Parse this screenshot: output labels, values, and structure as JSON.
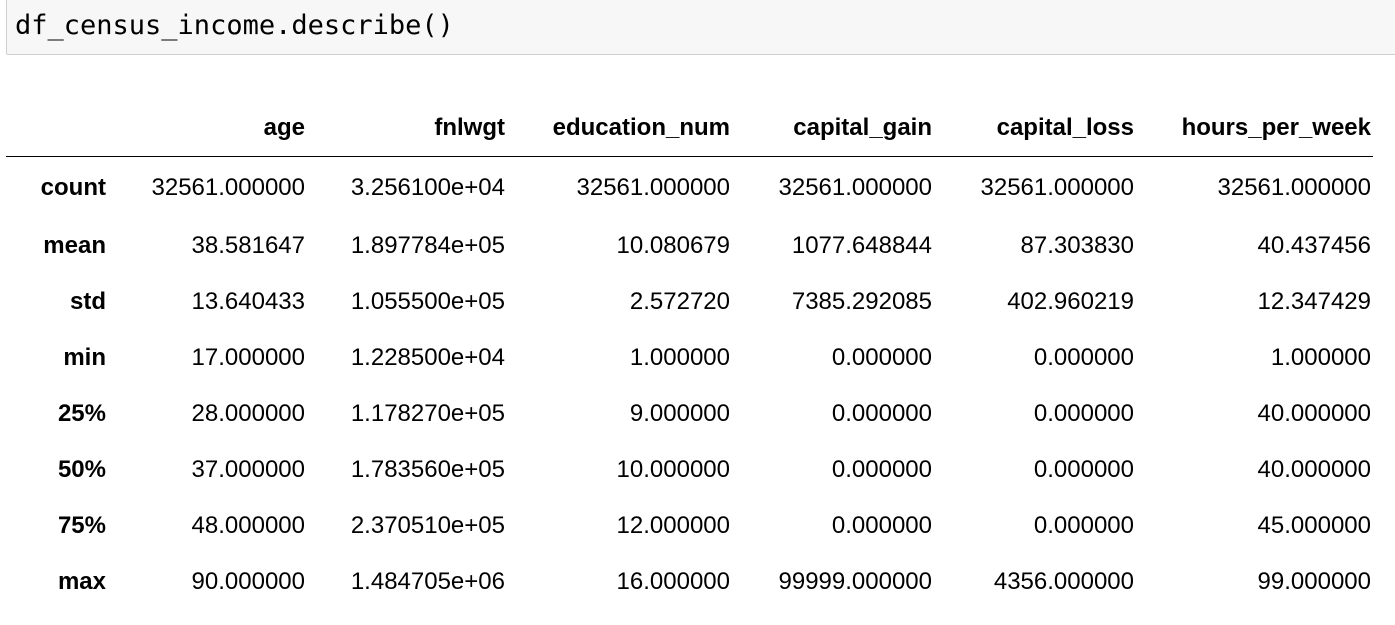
{
  "code_cell": {
    "source": "df_census_income.describe()"
  },
  "table": {
    "columns": [
      "age",
      "fnlwgt",
      "education_num",
      "capital_gain",
      "capital_loss",
      "hours_per_week"
    ],
    "rows": [
      {
        "index": "count",
        "values": [
          "32561.000000",
          "3.256100e+04",
          "32561.000000",
          "32561.000000",
          "32561.000000",
          "32561.000000"
        ]
      },
      {
        "index": "mean",
        "values": [
          "38.581647",
          "1.897784e+05",
          "10.080679",
          "1077.648844",
          "87.303830",
          "40.437456"
        ]
      },
      {
        "index": "std",
        "values": [
          "13.640433",
          "1.055500e+05",
          "2.572720",
          "7385.292085",
          "402.960219",
          "12.347429"
        ]
      },
      {
        "index": "min",
        "values": [
          "17.000000",
          "1.228500e+04",
          "1.000000",
          "0.000000",
          "0.000000",
          "1.000000"
        ]
      },
      {
        "index": "25%",
        "values": [
          "28.000000",
          "1.178270e+05",
          "9.000000",
          "0.000000",
          "0.000000",
          "40.000000"
        ]
      },
      {
        "index": "50%",
        "values": [
          "37.000000",
          "1.783560e+05",
          "10.000000",
          "0.000000",
          "0.000000",
          "40.000000"
        ]
      },
      {
        "index": "75%",
        "values": [
          "48.000000",
          "2.370510e+05",
          "12.000000",
          "0.000000",
          "0.000000",
          "45.000000"
        ]
      },
      {
        "index": "max",
        "values": [
          "90.000000",
          "1.484705e+06",
          "16.000000",
          "99999.000000",
          "4356.000000",
          "99.000000"
        ]
      }
    ]
  }
}
